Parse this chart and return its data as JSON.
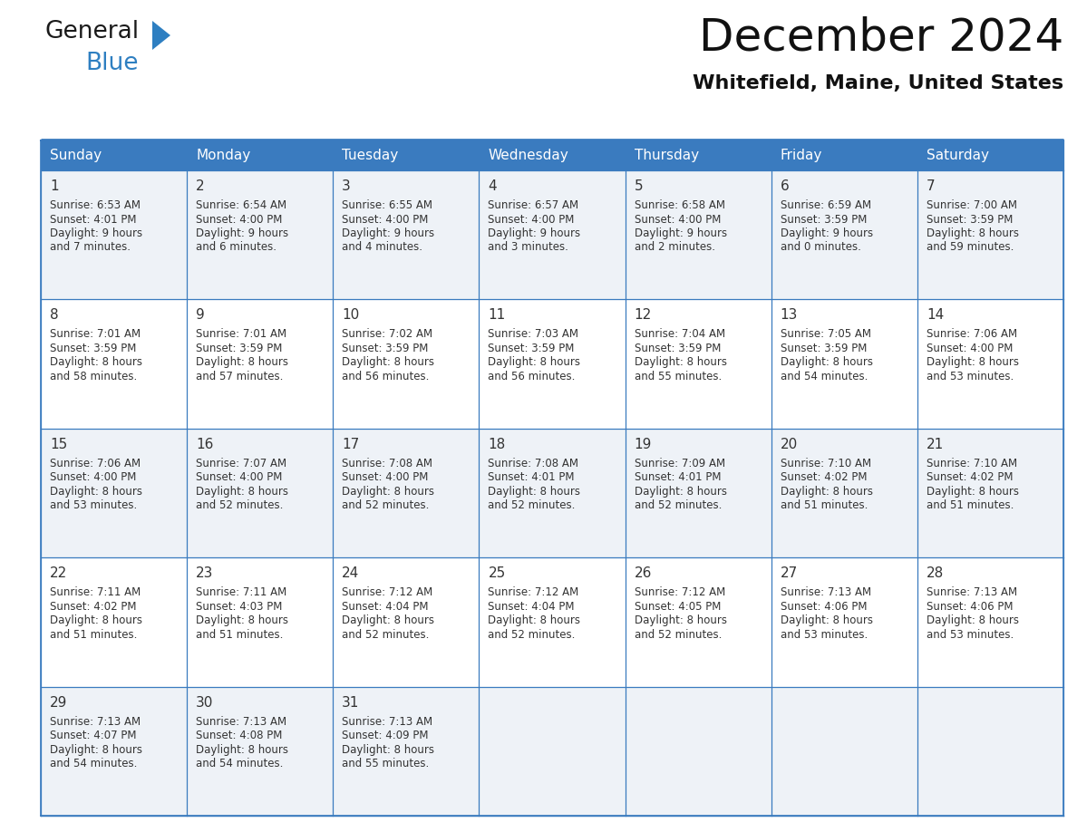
{
  "title": "December 2024",
  "subtitle": "Whitefield, Maine, United States",
  "header_color": "#3a7bbf",
  "header_text_color": "#ffffff",
  "row_bg_even": "#eef2f7",
  "row_bg_odd": "#ffffff",
  "border_color": "#3a7bbf",
  "text_color": "#333333",
  "days_of_week": [
    "Sunday",
    "Monday",
    "Tuesday",
    "Wednesday",
    "Thursday",
    "Friday",
    "Saturday"
  ],
  "calendar_data": [
    [
      {
        "day": "1",
        "sunrise": "6:53 AM",
        "sunset": "4:01 PM",
        "daylight_h": "9 hours",
        "daylight_m": "and 7 minutes."
      },
      {
        "day": "2",
        "sunrise": "6:54 AM",
        "sunset": "4:00 PM",
        "daylight_h": "9 hours",
        "daylight_m": "and 6 minutes."
      },
      {
        "day": "3",
        "sunrise": "6:55 AM",
        "sunset": "4:00 PM",
        "daylight_h": "9 hours",
        "daylight_m": "and 4 minutes."
      },
      {
        "day": "4",
        "sunrise": "6:57 AM",
        "sunset": "4:00 PM",
        "daylight_h": "9 hours",
        "daylight_m": "and 3 minutes."
      },
      {
        "day": "5",
        "sunrise": "6:58 AM",
        "sunset": "4:00 PM",
        "daylight_h": "9 hours",
        "daylight_m": "and 2 minutes."
      },
      {
        "day": "6",
        "sunrise": "6:59 AM",
        "sunset": "3:59 PM",
        "daylight_h": "9 hours",
        "daylight_m": "and 0 minutes."
      },
      {
        "day": "7",
        "sunrise": "7:00 AM",
        "sunset": "3:59 PM",
        "daylight_h": "8 hours",
        "daylight_m": "and 59 minutes."
      }
    ],
    [
      {
        "day": "8",
        "sunrise": "7:01 AM",
        "sunset": "3:59 PM",
        "daylight_h": "8 hours",
        "daylight_m": "and 58 minutes."
      },
      {
        "day": "9",
        "sunrise": "7:01 AM",
        "sunset": "3:59 PM",
        "daylight_h": "8 hours",
        "daylight_m": "and 57 minutes."
      },
      {
        "day": "10",
        "sunrise": "7:02 AM",
        "sunset": "3:59 PM",
        "daylight_h": "8 hours",
        "daylight_m": "and 56 minutes."
      },
      {
        "day": "11",
        "sunrise": "7:03 AM",
        "sunset": "3:59 PM",
        "daylight_h": "8 hours",
        "daylight_m": "and 56 minutes."
      },
      {
        "day": "12",
        "sunrise": "7:04 AM",
        "sunset": "3:59 PM",
        "daylight_h": "8 hours",
        "daylight_m": "and 55 minutes."
      },
      {
        "day": "13",
        "sunrise": "7:05 AM",
        "sunset": "3:59 PM",
        "daylight_h": "8 hours",
        "daylight_m": "and 54 minutes."
      },
      {
        "day": "14",
        "sunrise": "7:06 AM",
        "sunset": "4:00 PM",
        "daylight_h": "8 hours",
        "daylight_m": "and 53 minutes."
      }
    ],
    [
      {
        "day": "15",
        "sunrise": "7:06 AM",
        "sunset": "4:00 PM",
        "daylight_h": "8 hours",
        "daylight_m": "and 53 minutes."
      },
      {
        "day": "16",
        "sunrise": "7:07 AM",
        "sunset": "4:00 PM",
        "daylight_h": "8 hours",
        "daylight_m": "and 52 minutes."
      },
      {
        "day": "17",
        "sunrise": "7:08 AM",
        "sunset": "4:00 PM",
        "daylight_h": "8 hours",
        "daylight_m": "and 52 minutes."
      },
      {
        "day": "18",
        "sunrise": "7:08 AM",
        "sunset": "4:01 PM",
        "daylight_h": "8 hours",
        "daylight_m": "and 52 minutes."
      },
      {
        "day": "19",
        "sunrise": "7:09 AM",
        "sunset": "4:01 PM",
        "daylight_h": "8 hours",
        "daylight_m": "and 52 minutes."
      },
      {
        "day": "20",
        "sunrise": "7:10 AM",
        "sunset": "4:02 PM",
        "daylight_h": "8 hours",
        "daylight_m": "and 51 minutes."
      },
      {
        "day": "21",
        "sunrise": "7:10 AM",
        "sunset": "4:02 PM",
        "daylight_h": "8 hours",
        "daylight_m": "and 51 minutes."
      }
    ],
    [
      {
        "day": "22",
        "sunrise": "7:11 AM",
        "sunset": "4:02 PM",
        "daylight_h": "8 hours",
        "daylight_m": "and 51 minutes."
      },
      {
        "day": "23",
        "sunrise": "7:11 AM",
        "sunset": "4:03 PM",
        "daylight_h": "8 hours",
        "daylight_m": "and 51 minutes."
      },
      {
        "day": "24",
        "sunrise": "7:12 AM",
        "sunset": "4:04 PM",
        "daylight_h": "8 hours",
        "daylight_m": "and 52 minutes."
      },
      {
        "day": "25",
        "sunrise": "7:12 AM",
        "sunset": "4:04 PM",
        "daylight_h": "8 hours",
        "daylight_m": "and 52 minutes."
      },
      {
        "day": "26",
        "sunrise": "7:12 AM",
        "sunset": "4:05 PM",
        "daylight_h": "8 hours",
        "daylight_m": "and 52 minutes."
      },
      {
        "day": "27",
        "sunrise": "7:13 AM",
        "sunset": "4:06 PM",
        "daylight_h": "8 hours",
        "daylight_m": "and 53 minutes."
      },
      {
        "day": "28",
        "sunrise": "7:13 AM",
        "sunset": "4:06 PM",
        "daylight_h": "8 hours",
        "daylight_m": "and 53 minutes."
      }
    ],
    [
      {
        "day": "29",
        "sunrise": "7:13 AM",
        "sunset": "4:07 PM",
        "daylight_h": "8 hours",
        "daylight_m": "and 54 minutes."
      },
      {
        "day": "30",
        "sunrise": "7:13 AM",
        "sunset": "4:08 PM",
        "daylight_h": "8 hours",
        "daylight_m": "and 54 minutes."
      },
      {
        "day": "31",
        "sunrise": "7:13 AM",
        "sunset": "4:09 PM",
        "daylight_h": "8 hours",
        "daylight_m": "and 55 minutes."
      },
      null,
      null,
      null,
      null
    ]
  ],
  "logo_color_general": "#1a1a1a",
  "logo_color_blue": "#2e7fc1",
  "title_fontsize": 36,
  "subtitle_fontsize": 16,
  "header_fontsize": 11,
  "day_num_fontsize": 11,
  "cell_text_fontsize": 8.5
}
